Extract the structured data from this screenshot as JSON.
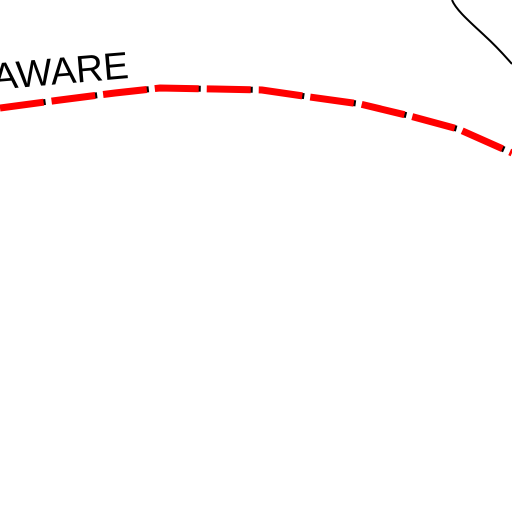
{
  "map": {
    "labels": {
      "region": "AWARE"
    },
    "features": {
      "boundary_line": {
        "kind": "dashed state boundary",
        "dash_color": "#ff0000",
        "gap_color": "#000000"
      },
      "outline_curve": {
        "kind": "thin outline",
        "color": "#000000"
      }
    },
    "colors": {
      "background": "#ffffff",
      "label_text": "#000000"
    }
  }
}
